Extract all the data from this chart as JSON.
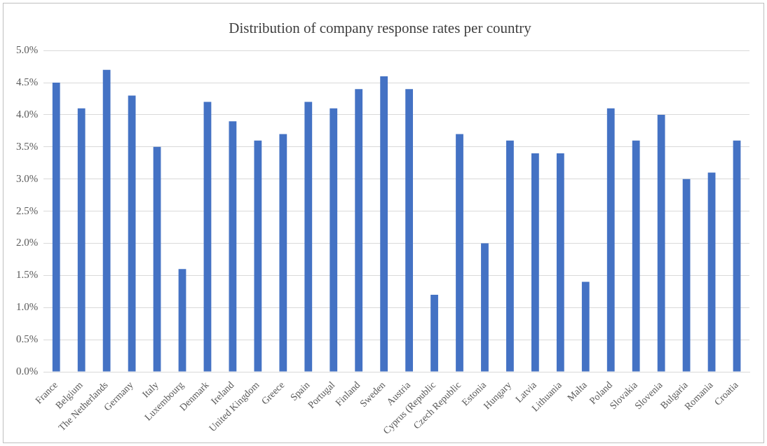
{
  "chart_data": {
    "type": "bar",
    "title": "Distribution of company response rates per country",
    "categories": [
      "France",
      "Belgium",
      "The Netherlands",
      "Germany",
      "Italy",
      "Luxembourg",
      "Denmark",
      "Ireland",
      "United Kingdom",
      "Greece",
      "Spain",
      "Portugal",
      "Finland",
      "Sweden",
      "Austria",
      "Cyprus (Republic",
      "Czech Republic",
      "Estonia",
      "Hungary",
      "Latvia",
      "Lithuania",
      "Malta",
      "Poland",
      "Slovakia",
      "Slovenia",
      "Bulgaria",
      "Romania",
      "Croatia"
    ],
    "values": [
      4.5,
      4.1,
      4.7,
      4.3,
      3.5,
      1.6,
      4.2,
      3.9,
      3.6,
      3.7,
      4.2,
      4.1,
      4.4,
      4.6,
      4.4,
      1.2,
      3.7,
      2.0,
      3.6,
      3.4,
      3.4,
      1.4,
      4.1,
      3.6,
      4.0,
      3.0,
      3.1,
      3.6
    ],
    "color": "#4472c4",
    "ylim": [
      0,
      5
    ],
    "yticks": [
      {
        "value": 0,
        "label": "0.0%"
      },
      {
        "value": 0.5,
        "label": "0.5%"
      },
      {
        "value": 1,
        "label": "1.0%"
      },
      {
        "value": 1.5,
        "label": "1.5%"
      },
      {
        "value": 2,
        "label": "2.0%"
      },
      {
        "value": 2.5,
        "label": "2.5%"
      },
      {
        "value": 3,
        "label": "3.0%"
      },
      {
        "value": 3.5,
        "label": "3.5%"
      },
      {
        "value": 4,
        "label": "4.0%"
      },
      {
        "value": 4.5,
        "label": "4.5%"
      },
      {
        "value": 5,
        "label": "5.0%"
      }
    ],
    "grid": "y"
  }
}
